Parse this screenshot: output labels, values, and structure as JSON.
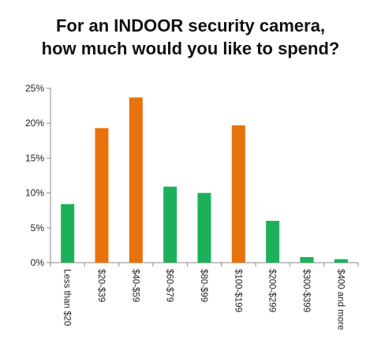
{
  "chart_data": {
    "type": "bar",
    "title_line1": "For an INDOOR security camera,",
    "title_line2": "how much would you like to spend?",
    "xlabel": "",
    "ylabel": "",
    "categories": [
      "Less than $20",
      "$20-$39",
      "$40-$59",
      "$60-$79",
      "$80-$99",
      "$100-$199",
      "$200-$299",
      "$300-$399",
      "$400 and more"
    ],
    "values": [
      8.4,
      19.3,
      23.7,
      10.9,
      10.0,
      19.7,
      6.0,
      0.8,
      0.5
    ],
    "bar_colors": [
      "#1cb05a",
      "#e8720c",
      "#e8720c",
      "#1cb05a",
      "#1cb05a",
      "#e8720c",
      "#1cb05a",
      "#1cb05a",
      "#1cb05a"
    ],
    "ylim": [
      0,
      25
    ],
    "yticks": [
      0,
      5,
      10,
      15,
      20,
      25
    ],
    "ytick_labels": [
      "0%",
      "5%",
      "10%",
      "15%",
      "20%",
      "25%"
    ],
    "grid": false,
    "legend": "none"
  }
}
